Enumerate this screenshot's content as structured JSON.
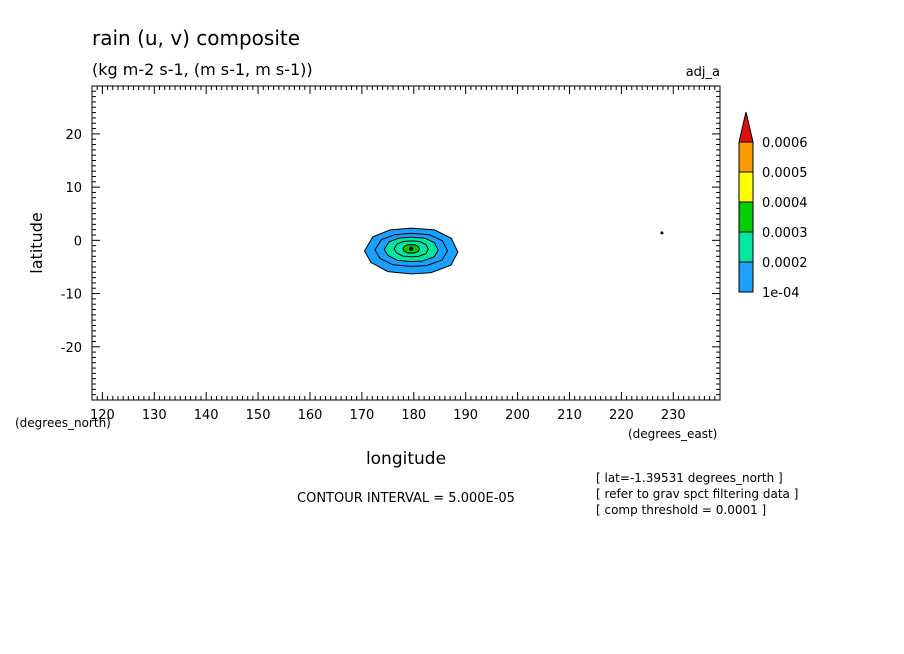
{
  "chart_data": {
    "type": "contour",
    "title": "rain (u, v) composite",
    "subtitle": "(kg m-2 s-1, (m s-1, m s-1))",
    "tag": "adj_a",
    "xlabel": "longitude",
    "ylabel": "latitude",
    "x_unit": "(degrees_east)",
    "y_unit": "(degrees_north)",
    "xlim": [
      118,
      239
    ],
    "ylim": [
      -30,
      29
    ],
    "x_ticks": [
      120,
      130,
      140,
      150,
      160,
      170,
      180,
      190,
      200,
      210,
      220,
      230
    ],
    "y_ticks": [
      -20,
      -10,
      0,
      10,
      20
    ],
    "contour_interval_text": "CONTOUR INTERVAL = 5.000E-05",
    "notes": [
      "[ lat=-1.39531 degrees_north ]",
      "[ refer to grav spct filtering data ]",
      "[ comp threshold = 0.0001 ]"
    ],
    "colorbar": {
      "labels": [
        "0.0006",
        "0.0005",
        "0.0004",
        "0.0003",
        "0.0002",
        "1e-04"
      ],
      "levels": [
        0.0001,
        0.0002,
        0.0003,
        0.0004,
        0.0005,
        0.0006
      ],
      "colors": [
        "#1aa0ff",
        "#00e8a0",
        "#00d000",
        "#ffff00",
        "#ff9900",
        "#e01010"
      ]
    },
    "contours": [
      {
        "level": 0.0001,
        "color": "#1aa0ff",
        "center": [
          179.5,
          -2.0
        ],
        "half_width": 9.0,
        "half_height": 4.3
      },
      {
        "level": 0.00015,
        "color": "#1aa0ff",
        "center": [
          179.5,
          -1.8
        ],
        "half_width": 7.0,
        "half_height": 3.1
      },
      {
        "level": 0.0002,
        "color": "#00e8a0",
        "center": [
          179.5,
          -1.7
        ],
        "half_width": 5.2,
        "half_height": 2.3
      },
      {
        "level": 0.00025,
        "color": "#00e8a0",
        "center": [
          179.5,
          -1.6
        ],
        "half_width": 3.3,
        "half_height": 1.5
      },
      {
        "level": 0.0003,
        "color": "#00d000",
        "center": [
          179.5,
          -1.6
        ],
        "half_width": 1.6,
        "half_height": 0.8
      }
    ],
    "max_point": [
      179.5,
      -1.6
    ],
    "marker_point": [
      227.8,
      1.4
    ]
  }
}
